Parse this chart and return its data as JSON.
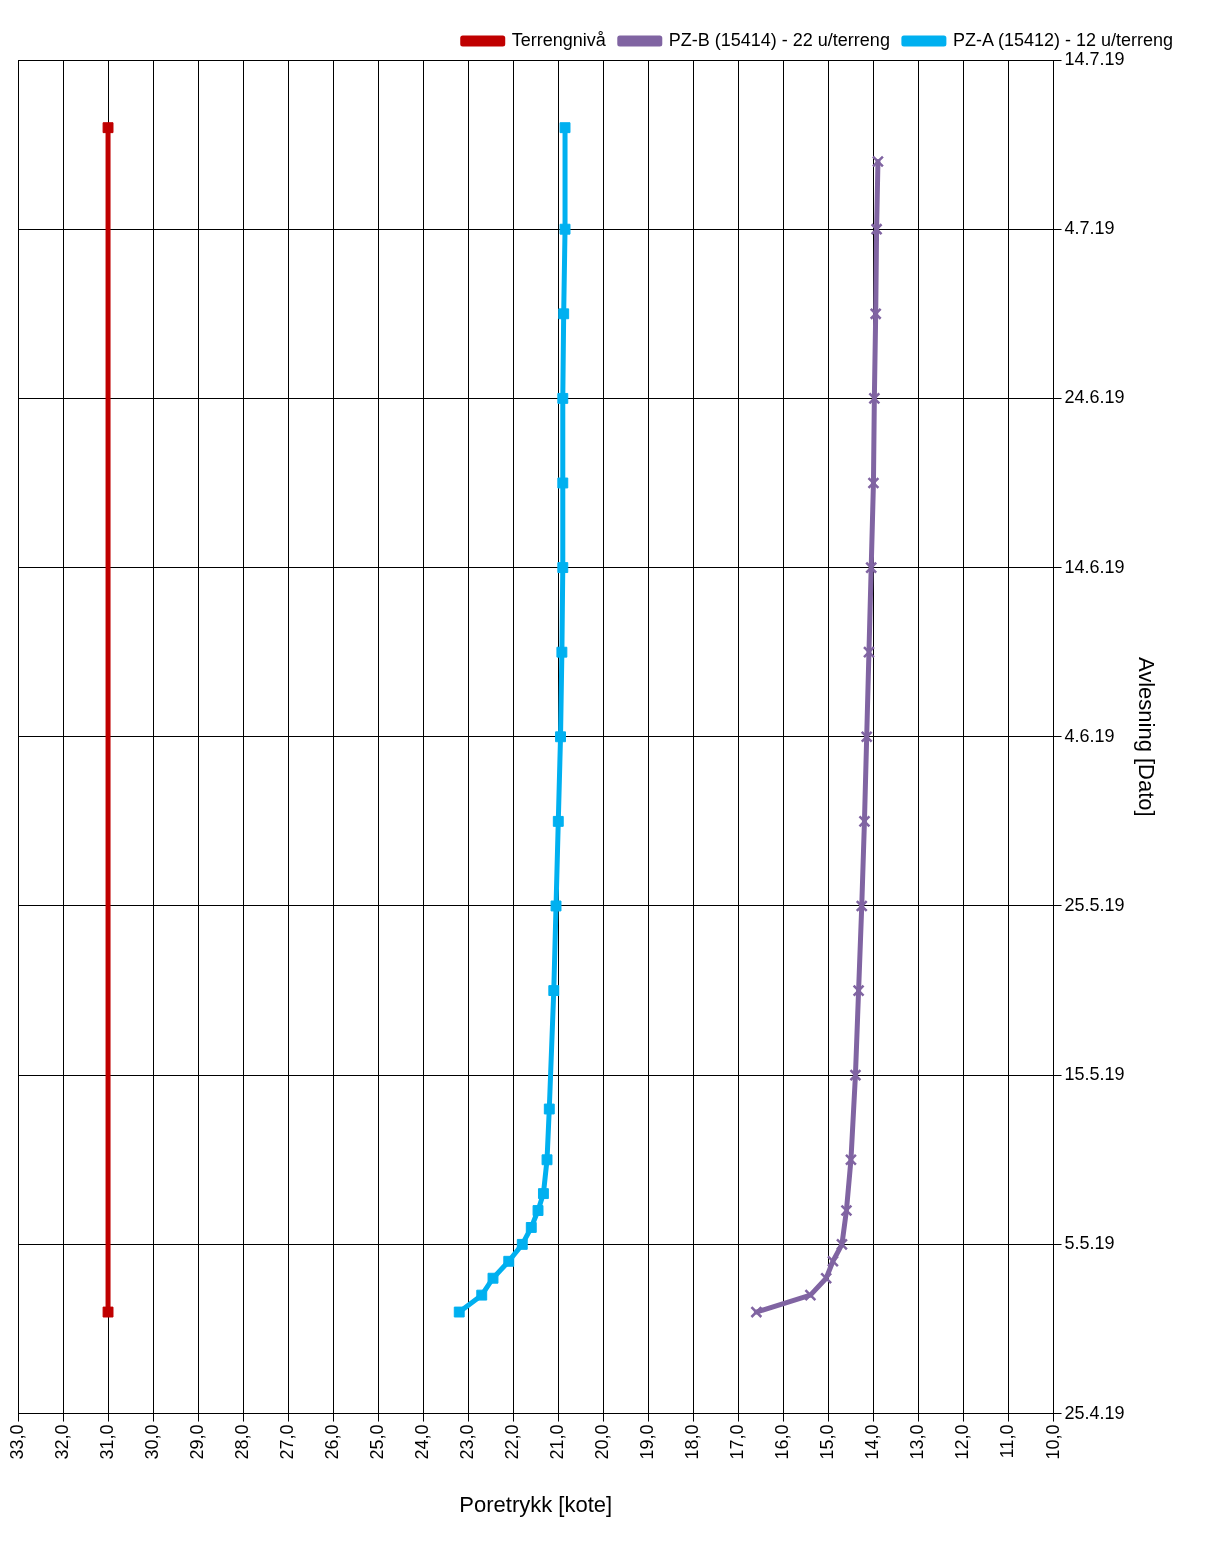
{
  "chart_data": {
    "type": "line",
    "orientation": "horizontal",
    "xlabel": "Poretrykk [kote]",
    "ylabel": "Avlesning [Dato]",
    "xlim": [
      33,
      10
    ],
    "xticks": [
      {
        "value": 33,
        "label": "33,0"
      },
      {
        "value": 32,
        "label": "32,0"
      },
      {
        "value": 31,
        "label": "31,0"
      },
      {
        "value": 30,
        "label": "30,0"
      },
      {
        "value": 29,
        "label": "29,0"
      },
      {
        "value": 28,
        "label": "28,0"
      },
      {
        "value": 27,
        "label": "27,0"
      },
      {
        "value": 26,
        "label": "26,0"
      },
      {
        "value": 25,
        "label": "25,0"
      },
      {
        "value": 24,
        "label": "24,0"
      },
      {
        "value": 23,
        "label": "23,0"
      },
      {
        "value": 22,
        "label": "22,0"
      },
      {
        "value": 21,
        "label": "21,0"
      },
      {
        "value": 20,
        "label": "20,0"
      },
      {
        "value": 19,
        "label": "19,0"
      },
      {
        "value": 18,
        "label": "18,0"
      },
      {
        "value": 17,
        "label": "17,0"
      },
      {
        "value": 16,
        "label": "16,0"
      },
      {
        "value": 15,
        "label": "15,0"
      },
      {
        "value": 14,
        "label": "14,0"
      },
      {
        "value": 13,
        "label": "13,0"
      },
      {
        "value": 12,
        "label": "12,0"
      },
      {
        "value": 11,
        "label": "11,0"
      },
      {
        "value": 10,
        "label": "10,0"
      }
    ],
    "ylim": [
      "--04-25",
      "--07-14"
    ],
    "yticks": [
      {
        "value": "--04-25",
        "label": "25.4.19"
      },
      {
        "value": "--05-05",
        "label": "5.5.19"
      },
      {
        "value": "--05-15",
        "label": "15.5.19"
      },
      {
        "value": "--05-25",
        "label": "25.5.19"
      },
      {
        "value": "--06-04",
        "label": "4.6.19"
      },
      {
        "value": "--06-14",
        "label": "14.6.19"
      },
      {
        "value": "--06-24",
        "label": "24.6.19"
      },
      {
        "value": "--07-04",
        "label": "4.7.19"
      },
      {
        "value": "--07-14",
        "label": "14.7.19"
      }
    ],
    "grid": true,
    "legend": "top right",
    "series": [
      {
        "name": "Terrengnivå",
        "color": "#c00000",
        "marker": "square",
        "x": [
          "--05-01",
          "--07-10"
        ],
        "values": [
          31,
          31
        ]
      },
      {
        "name": "PZ-B (15414) - 22 u/terreng",
        "color": "#8064a2",
        "marker": "cross",
        "x": [
          "--05-01",
          "--05-02",
          "--05-03",
          "--05-04",
          "--05-05",
          "--05-07",
          "--05-10",
          "--05-15",
          "--05-20",
          "--05-25",
          "--05-30",
          "--06-04",
          "--06-09",
          "--06-14",
          "--06-19",
          "--06-24",
          "--06-29",
          "--07-04",
          "--07-08"
        ],
        "values": [
          16.6,
          15.4,
          15.05,
          14.9,
          14.7,
          14.6,
          14.5,
          14.4,
          14.33,
          14.26,
          14.2,
          14.15,
          14.1,
          14.05,
          14.0,
          13.98,
          13.95,
          13.93,
          13.9
        ]
      },
      {
        "name": "PZ-A (15412) - 12 u/terreng",
        "color": "#00b0f0",
        "marker": "square",
        "x": [
          "--05-01",
          "--05-02",
          "--05-03",
          "--05-04",
          "--05-05",
          "--05-06",
          "--05-07",
          "--05-08",
          "--05-10",
          "--05-13",
          "--05-20",
          "--05-25",
          "--05-30",
          "--06-04",
          "--06-09",
          "--06-14",
          "--06-19",
          "--06-24",
          "--06-29",
          "--07-04",
          "--07-10"
        ],
        "values": [
          23.2,
          22.7,
          22.45,
          22.1,
          21.8,
          21.6,
          21.45,
          21.33,
          21.25,
          21.2,
          21.1,
          21.05,
          21.0,
          20.95,
          20.92,
          20.9,
          20.9,
          20.9,
          20.88,
          20.85,
          20.85
        ]
      }
    ]
  }
}
